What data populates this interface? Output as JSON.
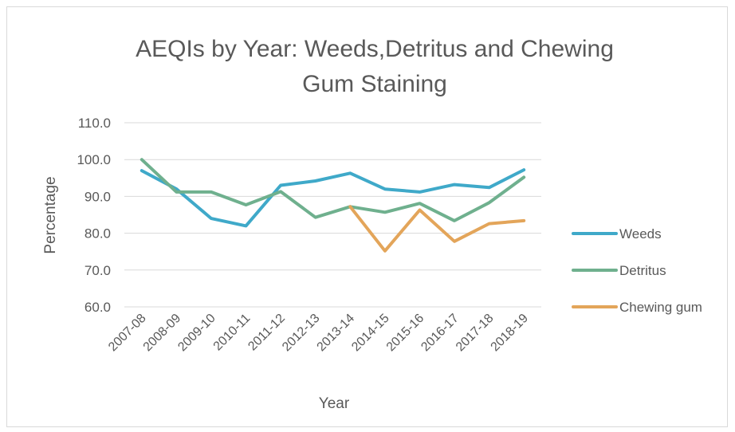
{
  "chart_data": {
    "type": "line",
    "title_lines": [
      "AEQIs by Year: Weeds,Detritus and Chewing",
      "Gum Staining"
    ],
    "xlabel": "Year",
    "ylabel": "Percentage",
    "ylim": [
      60,
      110
    ],
    "yticks": [
      "60.0",
      "70.0",
      "80.0",
      "90.0",
      "100.0",
      "110.0"
    ],
    "categories": [
      "2007-08",
      "2008-09",
      "2009-10",
      "2010-11",
      "2011-12",
      "2012-13",
      "2013-14",
      "2014-15",
      "2015-16",
      "2016-17",
      "2017-18",
      "2018-19"
    ],
    "grid": true,
    "legend_position": "right",
    "series": [
      {
        "name": "Weeds",
        "color": "#3fa9c9",
        "values": [
          97.0,
          92.0,
          84.0,
          82.0,
          93.0,
          94.2,
          96.3,
          92.0,
          91.2,
          93.2,
          92.4,
          97.2
        ]
      },
      {
        "name": "Detritus",
        "color": "#6fb08e",
        "values": [
          100.0,
          91.2,
          91.2,
          87.7,
          91.3,
          84.3,
          87.2,
          85.7,
          88.1,
          83.4,
          88.3,
          95.2
        ]
      },
      {
        "name": "Chewing gum",
        "color": "#e3a55a",
        "values": [
          null,
          null,
          null,
          null,
          null,
          null,
          87.2,
          75.2,
          86.3,
          77.8,
          82.6,
          83.4
        ]
      }
    ]
  }
}
